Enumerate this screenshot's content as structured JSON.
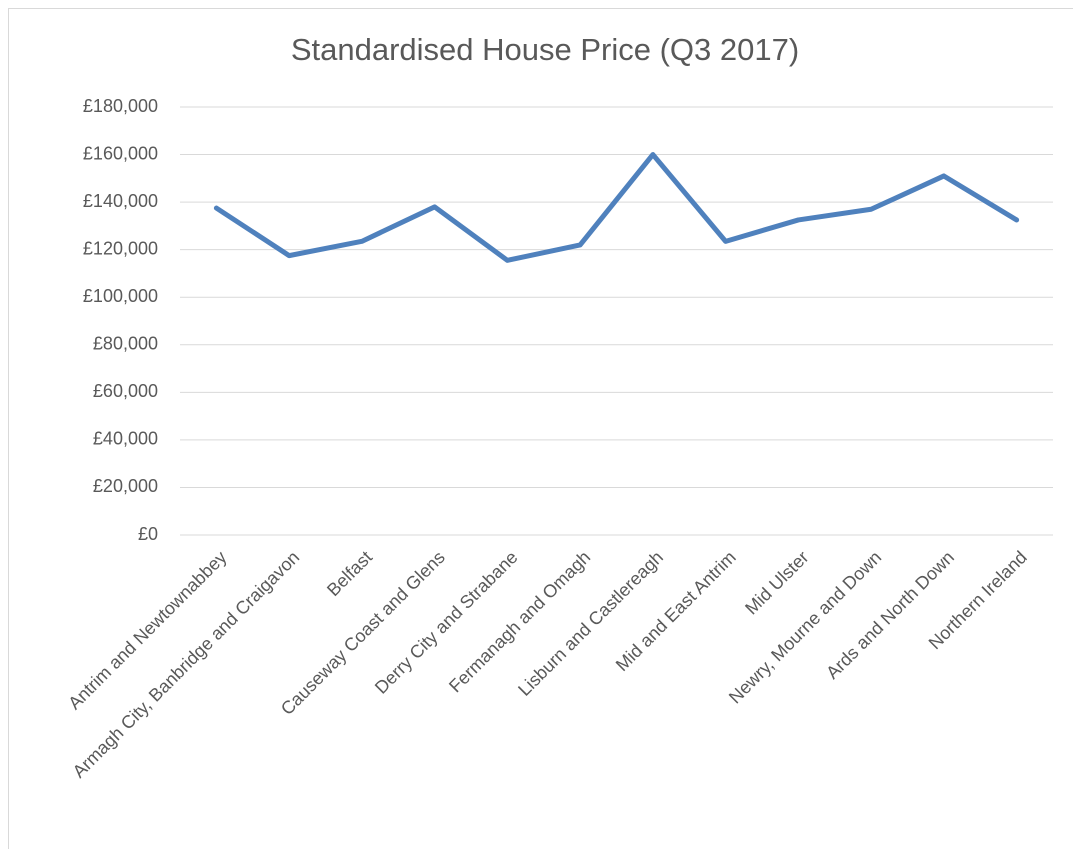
{
  "chart_data": {
    "type": "line",
    "title": "Standardised House Price (Q3 2017)",
    "categories": [
      "Antrim and Newtownabbey",
      "Armagh City, Banbridge and Craigavon",
      "Belfast",
      "Causeway Coast and Glens",
      "Derry City and Strabane",
      "Fermanagh and Omagh",
      "Lisburn and Castlereagh",
      "Mid and East Antrim",
      "Mid Ulster",
      "Newry, Mourne and Down",
      "Ards and North Down",
      "Northern Ireland"
    ],
    "series": [
      {
        "name": "Standardised House Price",
        "color": "#4f81bd",
        "values": [
          137500,
          117500,
          123500,
          138000,
          115500,
          122000,
          160000,
          123500,
          132500,
          137000,
          151000,
          132500
        ]
      }
    ],
    "ylim": [
      0,
      180000
    ],
    "yticks": [
      {
        "value": 0,
        "label": "£0"
      },
      {
        "value": 20000,
        "label": "£20,000"
      },
      {
        "value": 40000,
        "label": "£40,000"
      },
      {
        "value": 60000,
        "label": "£60,000"
      },
      {
        "value": 80000,
        "label": "£80,000"
      },
      {
        "value": 100000,
        "label": "£100,000"
      },
      {
        "value": 120000,
        "label": "£120,000"
      },
      {
        "value": 140000,
        "label": "£140,000"
      },
      {
        "value": 160000,
        "label": "£160,000"
      },
      {
        "value": 180000,
        "label": "£180,000"
      }
    ],
    "grid": true
  }
}
